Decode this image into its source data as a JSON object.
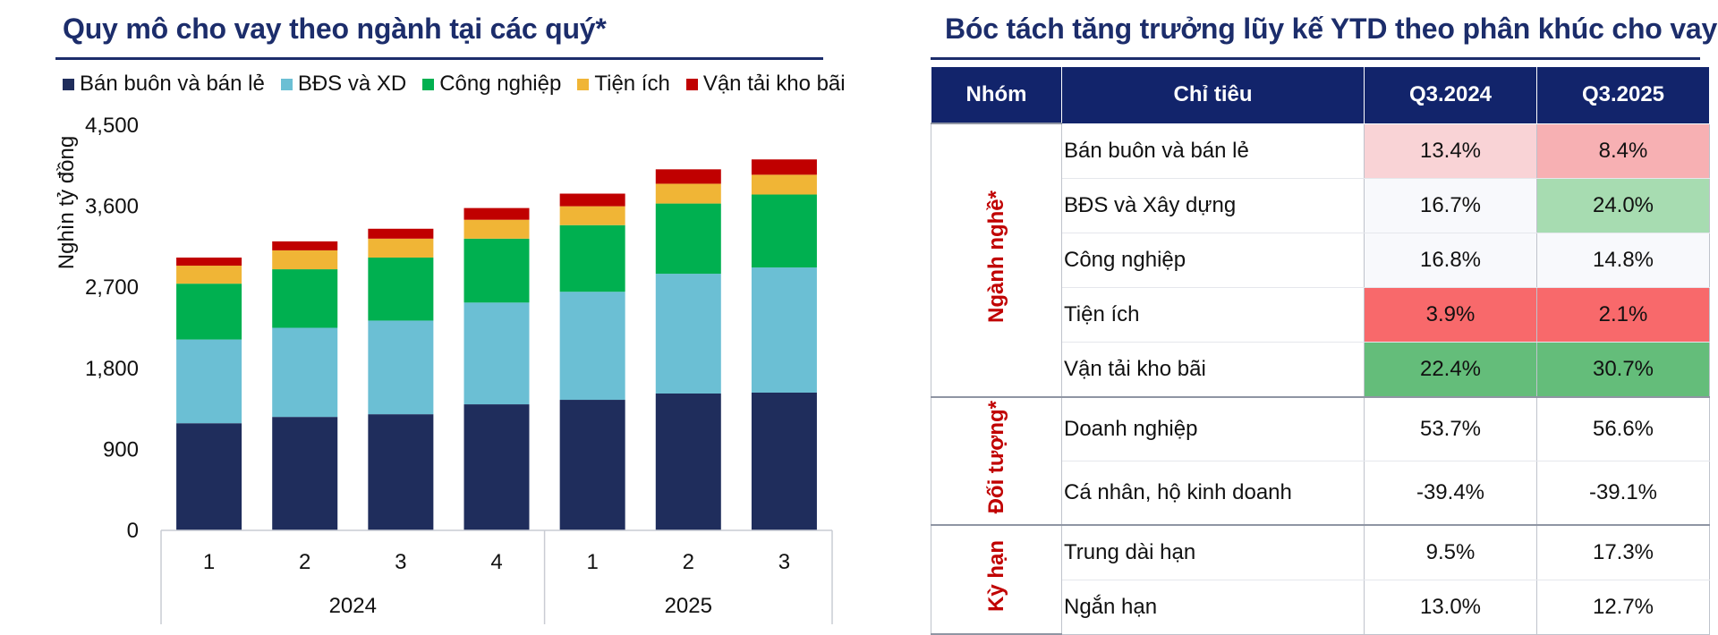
{
  "left_title": "Quy mô cho vay theo ngành tại các quý*",
  "right_title": "Bóc tách tăng trưởng lũy kế YTD theo phân khúc cho vay",
  "chart_data": {
    "type": "bar",
    "stacked": true,
    "title": "Quy mô cho vay theo ngành tại các quý*",
    "ylabel": "Nghìn tỷ đồng",
    "xlabel": "",
    "ylim": [
      0,
      4500
    ],
    "yticks": [
      "0",
      "900",
      "1,800",
      "2,700",
      "3,600",
      "4,500"
    ],
    "ytick_values": [
      0,
      900,
      1800,
      2700,
      3600,
      4500
    ],
    "categories": [
      "1",
      "2",
      "3",
      "4",
      "1",
      "2",
      "3"
    ],
    "year_groups": [
      {
        "label": "2024",
        "count": 4
      },
      {
        "label": "2025",
        "count": 3
      }
    ],
    "legend_position": "top",
    "series": [
      {
        "name": "Bán buôn và bán lẻ",
        "color": "#1f2d5c",
        "values": [
          1190,
          1260,
          1290,
          1400,
          1450,
          1520,
          1530
        ]
      },
      {
        "name": "BĐS và XD",
        "color": "#6bbfd4",
        "values": [
          930,
          990,
          1040,
          1130,
          1200,
          1330,
          1390
        ]
      },
      {
        "name": "Công nghiệp",
        "color": "#00b050",
        "values": [
          620,
          650,
          700,
          710,
          740,
          780,
          810
        ]
      },
      {
        "name": "Tiện ích",
        "color": "#f0b536",
        "values": [
          200,
          210,
          210,
          210,
          210,
          220,
          220
        ]
      },
      {
        "name": "Vận tải kho bãi",
        "color": "#c00000",
        "values": [
          90,
          100,
          110,
          130,
          140,
          160,
          170
        ]
      }
    ]
  },
  "table": {
    "headers": [
      "Nhóm",
      "Chỉ tiêu",
      "Q3.2024",
      "Q3.2025"
    ],
    "header_color": "#12246b",
    "groups": [
      {
        "label": "Ngành nghề*",
        "rows": [
          {
            "criterion": "Bán buôn và bán lẻ",
            "q3_2024": "13.4%",
            "q3_2025": "8.4%",
            "bg_2024": "#f9d3d6",
            "bg_2025": "#f7b0b3"
          },
          {
            "criterion": "BĐS và Xây dựng",
            "q3_2024": "16.7%",
            "q3_2025": "24.0%",
            "bg_2024": "#f8f9fc",
            "bg_2025": "#a7dcb1"
          },
          {
            "criterion": "Công nghiệp",
            "q3_2024": "16.8%",
            "q3_2025": "14.8%",
            "bg_2024": "#f8f9fc",
            "bg_2025": "#f8f9fc"
          },
          {
            "criterion": "Tiện ích",
            "q3_2024": "3.9%",
            "q3_2025": "2.1%",
            "bg_2024": "#f8696b",
            "bg_2025": "#f8696b"
          },
          {
            "criterion": "Vận tải kho bãi",
            "q3_2024": "22.4%",
            "q3_2025": "30.7%",
            "bg_2024": "#64bd7a",
            "bg_2025": "#64bd7a"
          }
        ]
      },
      {
        "label": "Đối tượng*",
        "rows": [
          {
            "criterion": "Doanh nghiệp",
            "q3_2024": "53.7%",
            "q3_2025": "56.6%",
            "bg_2024": "#ffffff",
            "bg_2025": "#ffffff"
          },
          {
            "criterion": "Cá nhân, hộ kinh doanh",
            "q3_2024": "-39.4%",
            "q3_2025": "-39.1%",
            "bg_2024": "#ffffff",
            "bg_2025": "#ffffff"
          }
        ]
      },
      {
        "label": "Kỳ hạn",
        "rows": [
          {
            "criterion": "Trung dài hạn",
            "q3_2024": "9.5%",
            "q3_2025": "17.3%",
            "bg_2024": "#ffffff",
            "bg_2025": "#ffffff"
          },
          {
            "criterion": "Ngắn hạn",
            "q3_2024": "13.0%",
            "q3_2025": "12.7%",
            "bg_2024": "#ffffff",
            "bg_2025": "#ffffff"
          }
        ]
      }
    ]
  }
}
